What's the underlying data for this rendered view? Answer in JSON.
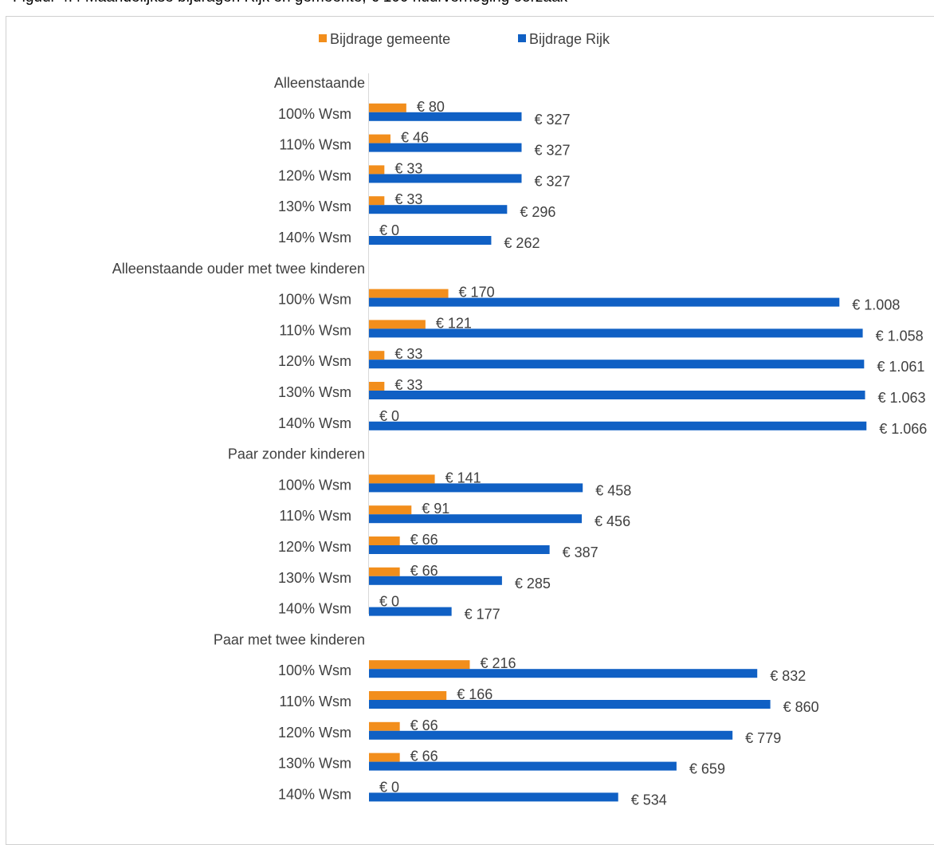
{
  "caption": "Figuur 4.4 Maandelijkse bijdragen Rijk en gemeente, € 100 huurverhoging oorzaak",
  "chart_data": {
    "type": "bar",
    "orientation": "horizontal",
    "legend_position": "top",
    "grid": false,
    "colors": {
      "Bijdrage gemeente": "#f28e1c",
      "Bijdrage Rijk": "#1060c4"
    },
    "series": [
      {
        "name": "Bijdrage gemeente",
        "key": "gemeente"
      },
      {
        "name": "Bijdrage Rijk",
        "key": "rijk"
      }
    ],
    "groups": [
      {
        "label": "Alleenstaande",
        "rows": [
          {
            "label": "100% Wsm",
            "gemeente": 80,
            "gemeente_label": "€ 80",
            "rijk": 327,
            "rijk_label": "€ 327"
          },
          {
            "label": "110% Wsm",
            "gemeente": 46,
            "gemeente_label": "€ 46",
            "rijk": 327,
            "rijk_label": "€ 327"
          },
          {
            "label": "120% Wsm",
            "gemeente": 33,
            "gemeente_label": "€ 33",
            "rijk": 327,
            "rijk_label": "€ 327"
          },
          {
            "label": "130% Wsm",
            "gemeente": 33,
            "gemeente_label": "€ 33",
            "rijk": 296,
            "rijk_label": "€ 296"
          },
          {
            "label": "140% Wsm",
            "gemeente": 0,
            "gemeente_label": "€ 0",
            "rijk": 262,
            "rijk_label": "€ 262"
          }
        ]
      },
      {
        "label": "Alleenstaande ouder met twee kinderen",
        "rows": [
          {
            "label": "100% Wsm",
            "gemeente": 170,
            "gemeente_label": "€ 170",
            "rijk": 1008,
            "rijk_label": "€ 1.008"
          },
          {
            "label": "110% Wsm",
            "gemeente": 121,
            "gemeente_label": "€ 121",
            "rijk": 1058,
            "rijk_label": "€ 1.058"
          },
          {
            "label": "120% Wsm",
            "gemeente": 33,
            "gemeente_label": "€ 33",
            "rijk": 1061,
            "rijk_label": "€ 1.061"
          },
          {
            "label": "130% Wsm",
            "gemeente": 33,
            "gemeente_label": "€ 33",
            "rijk": 1063,
            "rijk_label": "€ 1.063"
          },
          {
            "label": "140% Wsm",
            "gemeente": 0,
            "gemeente_label": "€ 0",
            "rijk": 1066,
            "rijk_label": "€ 1.066"
          }
        ]
      },
      {
        "label": "Paar zonder kinderen",
        "rows": [
          {
            "label": "100% Wsm",
            "gemeente": 141,
            "gemeente_label": "€ 141",
            "rijk": 458,
            "rijk_label": "€ 458"
          },
          {
            "label": "110% Wsm",
            "gemeente": 91,
            "gemeente_label": "€ 91",
            "rijk": 456,
            "rijk_label": "€ 456"
          },
          {
            "label": "120% Wsm",
            "gemeente": 66,
            "gemeente_label": "€ 66",
            "rijk": 387,
            "rijk_label": "€ 387"
          },
          {
            "label": "130% Wsm",
            "gemeente": 66,
            "gemeente_label": "€ 66",
            "rijk": 285,
            "rijk_label": "€ 285"
          },
          {
            "label": "140% Wsm",
            "gemeente": 0,
            "gemeente_label": "€ 0",
            "rijk": 177,
            "rijk_label": "€ 177"
          }
        ]
      },
      {
        "label": "Paar met twee kinderen",
        "rows": [
          {
            "label": "100% Wsm",
            "gemeente": 216,
            "gemeente_label": "€ 216",
            "rijk": 832,
            "rijk_label": "€ 832"
          },
          {
            "label": "110% Wsm",
            "gemeente": 166,
            "gemeente_label": "€ 166",
            "rijk": 860,
            "rijk_label": "€ 860"
          },
          {
            "label": "120% Wsm",
            "gemeente": 66,
            "gemeente_label": "€ 66",
            "rijk": 779,
            "rijk_label": "€ 779"
          },
          {
            "label": "130% Wsm",
            "gemeente": 66,
            "gemeente_label": "€ 66",
            "rijk": 659,
            "rijk_label": "€ 659"
          },
          {
            "label": "140% Wsm",
            "gemeente": 0,
            "gemeente_label": "€ 0",
            "rijk": 534,
            "rijk_label": "€ 534"
          }
        ]
      }
    ]
  }
}
